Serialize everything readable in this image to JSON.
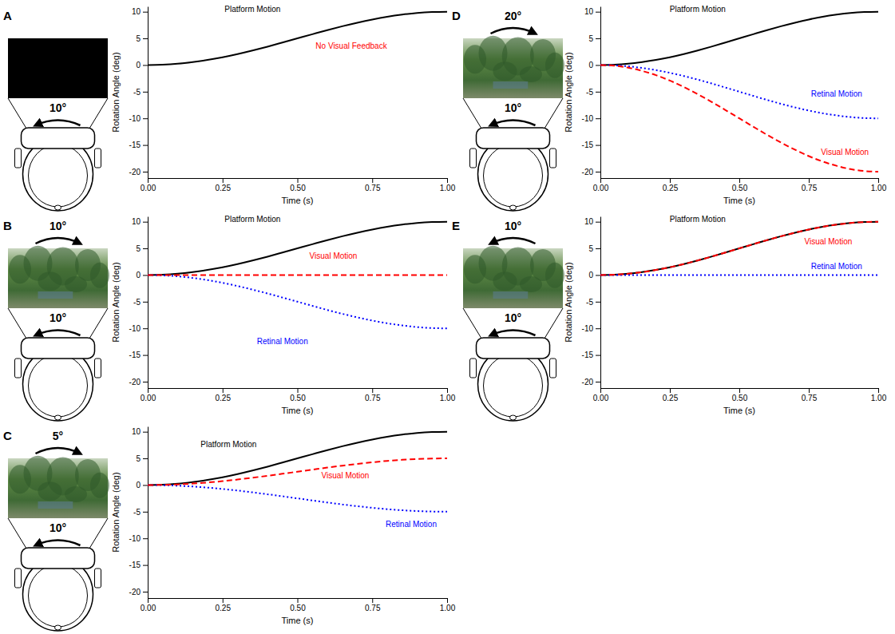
{
  "chart_data": [
    {
      "type": "line",
      "panel": "A",
      "icon_labels": {
        "head": "10°"
      },
      "xlabel": "Time (s)",
      "ylabel": "Rotation Angle (deg)",
      "x": [
        0,
        0.05,
        0.1,
        0.15,
        0.2,
        0.25,
        0.3,
        0.35,
        0.4,
        0.45,
        0.5,
        0.55,
        0.6,
        0.65,
        0.7,
        0.75,
        0.8,
        0.85,
        0.9,
        0.95,
        1
      ],
      "xlim": [
        0,
        1
      ],
      "xticks": [
        {
          "value": 0,
          "label": "0.00"
        },
        {
          "value": 0.25,
          "label": "0.25"
        },
        {
          "value": 0.5,
          "label": "0.50"
        },
        {
          "value": 0.75,
          "label": "0.75"
        },
        {
          "value": 1,
          "label": "1.00"
        }
      ],
      "ylim": [
        -21.2,
        11
      ],
      "yticks": [
        -20,
        -15,
        -10,
        -5,
        0,
        5,
        10
      ],
      "series": [
        {
          "color": "#000000",
          "line_style": "solid",
          "values": [
            0,
            0.06,
            0.24,
            0.55,
            0.95,
            1.46,
            2.06,
            2.73,
            3.45,
            4.22,
            5,
            5.78,
            6.55,
            7.27,
            7.94,
            8.54,
            9.05,
            9.45,
            9.76,
            9.94,
            10
          ]
        }
      ],
      "annotations": [
        {
          "text": "Platform Motion",
          "x": 0.35,
          "y": 10.3,
          "color": "#000000"
        },
        {
          "text": "No Visual Feedback",
          "x": 0.68,
          "y": 3.5,
          "color": "#ff0000"
        }
      ]
    },
    {
      "type": "line",
      "panel": "B",
      "icon_labels": {
        "scene": "10°",
        "head": "10°"
      },
      "xlabel": "Time (s)",
      "ylabel": "Rotation Angle (deg)",
      "x": [
        0,
        0.05,
        0.1,
        0.15,
        0.2,
        0.25,
        0.3,
        0.35,
        0.4,
        0.45,
        0.5,
        0.55,
        0.6,
        0.65,
        0.7,
        0.75,
        0.8,
        0.85,
        0.9,
        0.95,
        1
      ],
      "xlim": [
        0,
        1
      ],
      "xticks": [
        {
          "value": 0,
          "label": "0.00"
        },
        {
          "value": 0.25,
          "label": "0.25"
        },
        {
          "value": 0.5,
          "label": "0.50"
        },
        {
          "value": 0.75,
          "label": "0.75"
        },
        {
          "value": 1,
          "label": "1.00"
        }
      ],
      "ylim": [
        -21.2,
        11
      ],
      "yticks": [
        -20,
        -15,
        -10,
        -5,
        0,
        5,
        10
      ],
      "series": [
        {
          "color": "#000000",
          "line_style": "solid",
          "values": [
            0,
            0.06,
            0.24,
            0.55,
            0.95,
            1.46,
            2.06,
            2.73,
            3.45,
            4.22,
            5,
            5.78,
            6.55,
            7.27,
            7.94,
            8.54,
            9.05,
            9.45,
            9.76,
            9.94,
            10
          ]
        },
        {
          "color": "#0000ff",
          "line_style": "dotted",
          "values": [
            0,
            -0.06,
            -0.24,
            -0.55,
            -0.95,
            -1.46,
            -2.06,
            -2.73,
            -3.45,
            -4.22,
            -5,
            -5.78,
            -6.55,
            -7.27,
            -7.94,
            -8.54,
            -9.05,
            -9.45,
            -9.76,
            -9.94,
            -10
          ]
        },
        {
          "color": "#ff0000",
          "line_style": "dashed",
          "values": [
            0,
            0,
            0,
            0,
            0,
            0,
            0,
            0,
            0,
            0,
            0,
            0,
            0,
            0,
            0,
            0,
            0,
            0,
            0,
            0,
            0
          ]
        }
      ],
      "annotations": [
        {
          "text": "Platform Motion",
          "x": 0.35,
          "y": 10.3,
          "color": "#000000"
        },
        {
          "text": "Visual Motion",
          "x": 0.62,
          "y": 3.5,
          "color": "#ff0000"
        },
        {
          "text": "Retinal Motion",
          "x": 0.45,
          "y": -12.5,
          "color": "#0000ff"
        }
      ]
    },
    {
      "type": "line",
      "panel": "C",
      "icon_labels": {
        "scene": "5°",
        "head": "10°"
      },
      "xlabel": "Time (s)",
      "ylabel": "Rotation Angle (deg)",
      "x": [
        0,
        0.05,
        0.1,
        0.15,
        0.2,
        0.25,
        0.3,
        0.35,
        0.4,
        0.45,
        0.5,
        0.55,
        0.6,
        0.65,
        0.7,
        0.75,
        0.8,
        0.85,
        0.9,
        0.95,
        1
      ],
      "xlim": [
        0,
        1
      ],
      "xticks": [
        {
          "value": 0,
          "label": "0.00"
        },
        {
          "value": 0.25,
          "label": "0.25"
        },
        {
          "value": 0.5,
          "label": "0.50"
        },
        {
          "value": 0.75,
          "label": "0.75"
        },
        {
          "value": 1,
          "label": "1.00"
        }
      ],
      "ylim": [
        -21.2,
        11
      ],
      "yticks": [
        -20,
        -15,
        -10,
        -5,
        0,
        5,
        10
      ],
      "series": [
        {
          "color": "#000000",
          "line_style": "solid",
          "values": [
            0,
            0.06,
            0.24,
            0.55,
            0.95,
            1.46,
            2.06,
            2.73,
            3.45,
            4.22,
            5,
            5.78,
            6.55,
            7.27,
            7.94,
            8.54,
            9.05,
            9.45,
            9.76,
            9.94,
            10
          ]
        },
        {
          "color": "#0000ff",
          "line_style": "dotted",
          "values": [
            0,
            -0.03,
            -0.12,
            -0.28,
            -0.48,
            -0.73,
            -1.03,
            -1.37,
            -1.73,
            -2.11,
            -2.5,
            -2.89,
            -3.28,
            -3.64,
            -3.97,
            -4.27,
            -4.53,
            -4.73,
            -4.88,
            -4.97,
            -5
          ]
        },
        {
          "color": "#ff0000",
          "line_style": "dashed",
          "values": [
            0,
            0.03,
            0.12,
            0.28,
            0.48,
            0.73,
            1.03,
            1.37,
            1.73,
            2.11,
            2.5,
            2.89,
            3.28,
            3.64,
            3.97,
            4.27,
            4.53,
            4.73,
            4.88,
            4.97,
            5
          ]
        }
      ],
      "annotations": [
        {
          "text": "Platform Motion",
          "x": 0.27,
          "y": 7.5,
          "color": "#000000"
        },
        {
          "text": "Visual Motion",
          "x": 0.66,
          "y": 1.6,
          "color": "#ff0000"
        },
        {
          "text": "Retinal Motion",
          "x": 0.88,
          "y": -7.5,
          "color": "#0000ff"
        }
      ]
    },
    {
      "type": "line",
      "panel": "D",
      "icon_labels": {
        "scene": "20°",
        "head": "10°"
      },
      "xlabel": "Time (s)",
      "ylabel": "Rotation Angle (deg)",
      "x": [
        0,
        0.05,
        0.1,
        0.15,
        0.2,
        0.25,
        0.3,
        0.35,
        0.4,
        0.45,
        0.5,
        0.55,
        0.6,
        0.65,
        0.7,
        0.75,
        0.8,
        0.85,
        0.9,
        0.95,
        1
      ],
      "xlim": [
        0,
        1
      ],
      "xticks": [
        {
          "value": 0,
          "label": "0.00"
        },
        {
          "value": 0.25,
          "label": "0.25"
        },
        {
          "value": 0.5,
          "label": "0.50"
        },
        {
          "value": 0.75,
          "label": "0.75"
        },
        {
          "value": 1,
          "label": "1.00"
        }
      ],
      "ylim": [
        -21.2,
        11
      ],
      "yticks": [
        -20,
        -15,
        -10,
        -5,
        0,
        5,
        10
      ],
      "series": [
        {
          "color": "#000000",
          "line_style": "solid",
          "values": [
            0,
            0.06,
            0.24,
            0.55,
            0.95,
            1.46,
            2.06,
            2.73,
            3.45,
            4.22,
            5,
            5.78,
            6.55,
            7.27,
            7.94,
            8.54,
            9.05,
            9.45,
            9.76,
            9.94,
            10
          ]
        },
        {
          "color": "#0000ff",
          "line_style": "dotted",
          "values": [
            0,
            -0.06,
            -0.24,
            -0.55,
            -0.95,
            -1.46,
            -2.06,
            -2.73,
            -3.45,
            -4.22,
            -5,
            -5.78,
            -6.55,
            -7.27,
            -7.94,
            -8.54,
            -9.05,
            -9.45,
            -9.76,
            -9.94,
            -10
          ]
        },
        {
          "color": "#ff0000",
          "line_style": "dashed",
          "values": [
            0,
            -0.12,
            -0.48,
            -1.1,
            -1.9,
            -2.92,
            -4.12,
            -5.46,
            -6.9,
            -8.44,
            -10,
            -11.56,
            -13.1,
            -14.54,
            -15.88,
            -17.08,
            -18.1,
            -18.9,
            -19.52,
            -19.88,
            -20
          ]
        }
      ],
      "annotations": [
        {
          "text": "Platform Motion",
          "x": 0.35,
          "y": 10.3,
          "color": "#000000"
        },
        {
          "text": "Retinal Motion",
          "x": 0.85,
          "y": -5.5,
          "color": "#0000ff"
        },
        {
          "text": "Visual Motion",
          "x": 0.88,
          "y": -16.5,
          "color": "#ff0000"
        }
      ]
    },
    {
      "type": "line",
      "panel": "E",
      "icon_labels": {
        "scene": "10°",
        "head": "10°"
      },
      "xlabel": "Time (s)",
      "ylabel": "Rotation Angle (deg)",
      "x": [
        0,
        0.05,
        0.1,
        0.15,
        0.2,
        0.25,
        0.3,
        0.35,
        0.4,
        0.45,
        0.5,
        0.55,
        0.6,
        0.65,
        0.7,
        0.75,
        0.8,
        0.85,
        0.9,
        0.95,
        1
      ],
      "xlim": [
        0,
        1
      ],
      "xticks": [
        {
          "value": 0,
          "label": "0.00"
        },
        {
          "value": 0.25,
          "label": "0.25"
        },
        {
          "value": 0.5,
          "label": "0.50"
        },
        {
          "value": 0.75,
          "label": "0.75"
        },
        {
          "value": 1,
          "label": "1.00"
        }
      ],
      "ylim": [
        -21.2,
        11
      ],
      "yticks": [
        -20,
        -15,
        -10,
        -5,
        0,
        5,
        10
      ],
      "series": [
        {
          "color": "#000000",
          "line_style": "solid",
          "values": [
            0,
            0.06,
            0.24,
            0.55,
            0.95,
            1.46,
            2.06,
            2.73,
            3.45,
            4.22,
            5,
            5.78,
            6.55,
            7.27,
            7.94,
            8.54,
            9.05,
            9.45,
            9.76,
            9.94,
            10
          ]
        },
        {
          "color": "#0000ff",
          "line_style": "dotted",
          "values": [
            0,
            0,
            0,
            0,
            0,
            0,
            0,
            0,
            0,
            0,
            0,
            0,
            0,
            0,
            0,
            0,
            0,
            0,
            0,
            0,
            0
          ]
        },
        {
          "color": "#ff0000",
          "line_style": "dashed",
          "values": [
            0,
            0.06,
            0.24,
            0.55,
            0.95,
            1.46,
            2.06,
            2.73,
            3.45,
            4.22,
            5,
            5.78,
            6.55,
            7.27,
            7.94,
            8.54,
            9.05,
            9.45,
            9.76,
            9.94,
            10
          ]
        }
      ],
      "annotations": [
        {
          "text": "Platform Motion",
          "x": 0.35,
          "y": 10.3,
          "color": "#000000"
        },
        {
          "text": "Visual Motion",
          "x": 0.82,
          "y": 6.2,
          "color": "#ff0000"
        },
        {
          "text": "Retinal Motion",
          "x": 0.85,
          "y": 1.5,
          "color": "#0000ff"
        }
      ]
    }
  ]
}
